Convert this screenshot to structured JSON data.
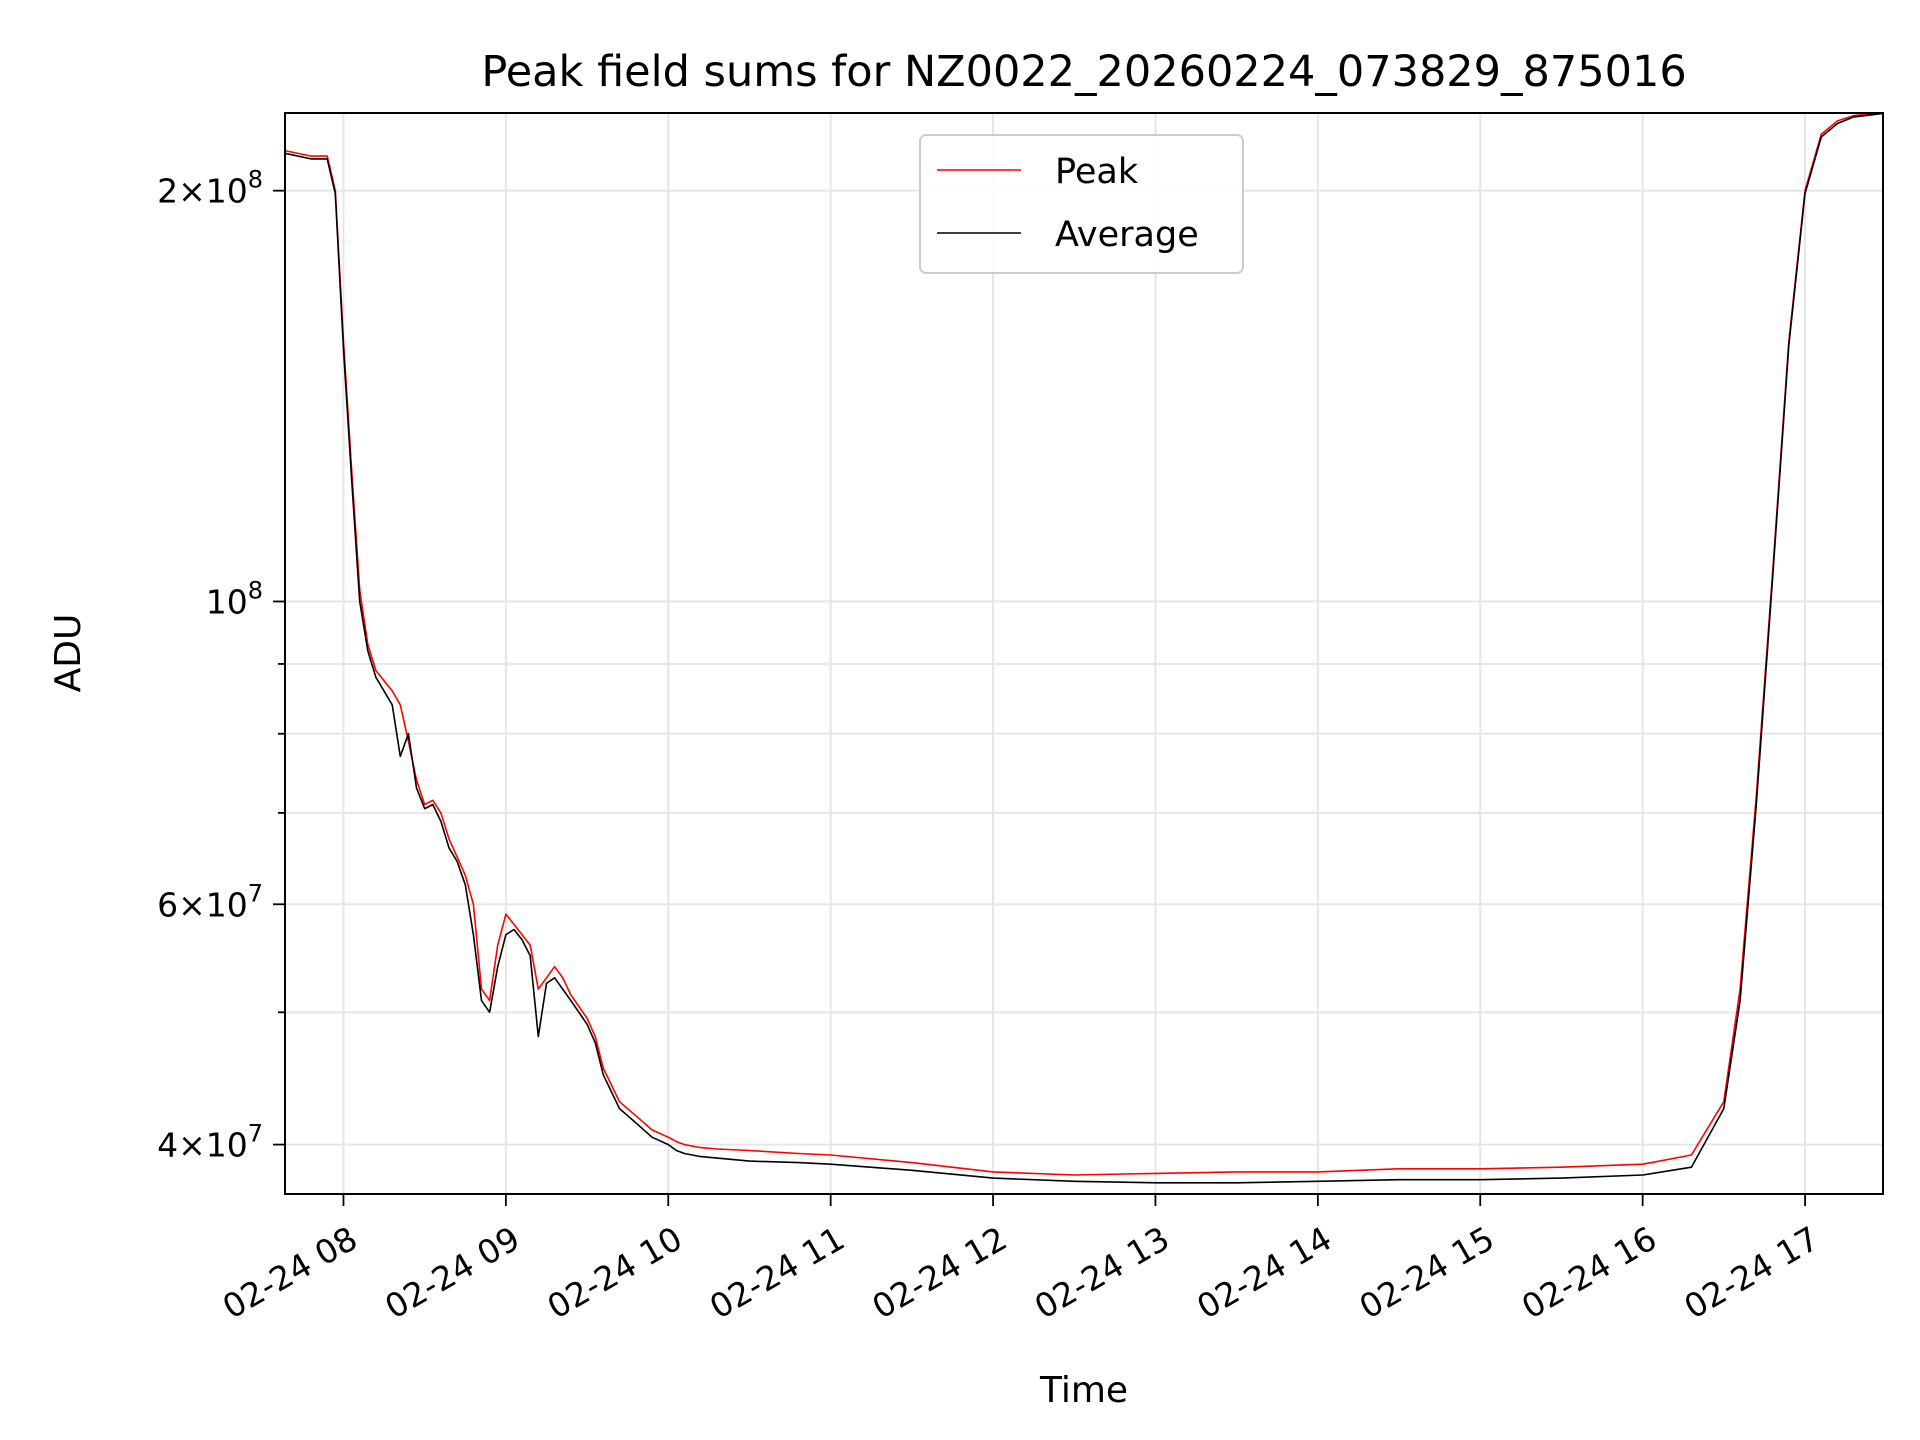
{
  "chart_data": {
    "type": "line",
    "title": "Peak field sums for NZ0022_20260224_073829_875016",
    "xlabel": "Time",
    "ylabel": "ADU",
    "xlim": [
      7.64,
      17.48
    ],
    "ylim": [
      36800000,
      228000000
    ],
    "y_scale": "log",
    "grid": true,
    "legend_position": "upper-center",
    "x_ticks": [
      {
        "value": 8,
        "label": "02-24 08"
      },
      {
        "value": 9,
        "label": "02-24 09"
      },
      {
        "value": 10,
        "label": "02-24 10"
      },
      {
        "value": 11,
        "label": "02-24 11"
      },
      {
        "value": 12,
        "label": "02-24 12"
      },
      {
        "value": 13,
        "label": "02-24 13"
      },
      {
        "value": 14,
        "label": "02-24 14"
      },
      {
        "value": 15,
        "label": "02-24 15"
      },
      {
        "value": 16,
        "label": "02-24 16"
      },
      {
        "value": 17,
        "label": "02-24 17"
      }
    ],
    "y_ticks": [
      {
        "value": 40000000,
        "mantissa": "4",
        "exponent": "7"
      },
      {
        "value": 60000000,
        "mantissa": "6",
        "exponent": "7"
      },
      {
        "value": 100000000,
        "mantissa": "",
        "exponent": "8"
      },
      {
        "value": 200000000,
        "mantissa": "2",
        "exponent": "8"
      }
    ],
    "y_minor_ticks": [
      50000000,
      70000000,
      80000000,
      90000000
    ],
    "series": [
      {
        "name": "Peak",
        "color": "#ff0000",
        "x": [
          7.64,
          7.8,
          7.9,
          7.95,
          8.0,
          8.05,
          8.1,
          8.15,
          8.2,
          8.3,
          8.35,
          8.4,
          8.45,
          8.5,
          8.55,
          8.6,
          8.65,
          8.7,
          8.75,
          8.8,
          8.85,
          8.9,
          8.95,
          9.0,
          9.05,
          9.1,
          9.15,
          9.2,
          9.25,
          9.3,
          9.35,
          9.4,
          9.45,
          9.5,
          9.55,
          9.6,
          9.7,
          9.8,
          9.9,
          10.0,
          10.05,
          10.1,
          10.2,
          10.3,
          10.5,
          10.8,
          11.0,
          11.5,
          12.0,
          12.5,
          13.0,
          13.5,
          14.0,
          14.5,
          15.0,
          15.5,
          16.0,
          16.3,
          16.5,
          16.6,
          16.7,
          16.8,
          16.9,
          17.0,
          17.1,
          17.2,
          17.3,
          17.4,
          17.48
        ],
        "values": [
          214000000,
          212000000,
          212000000,
          200000000,
          155000000,
          125000000,
          102000000,
          93000000,
          89000000,
          86000000,
          84000000,
          79000000,
          74000000,
          71000000,
          71500000,
          70000000,
          67000000,
          65000000,
          63000000,
          60000000,
          52000000,
          51000000,
          56000000,
          59000000,
          58000000,
          57000000,
          56000000,
          52000000,
          53000000,
          54000000,
          53000000,
          51500000,
          50500000,
          49500000,
          48000000,
          45500000,
          43000000,
          42000000,
          41000000,
          40500000,
          40200000,
          40000000,
          39800000,
          39700000,
          39600000,
          39400000,
          39300000,
          38800000,
          38200000,
          38000000,
          38100000,
          38200000,
          38200000,
          38400000,
          38400000,
          38500000,
          38700000,
          39300000,
          43000000,
          52000000,
          72000000,
          105000000,
          155000000,
          200000000,
          220000000,
          225000000,
          227000000,
          227500000,
          228000000
        ]
      },
      {
        "name": "Average",
        "color": "#000000",
        "x": [
          7.64,
          7.8,
          7.9,
          7.95,
          8.0,
          8.05,
          8.1,
          8.15,
          8.2,
          8.3,
          8.35,
          8.4,
          8.45,
          8.5,
          8.55,
          8.6,
          8.65,
          8.7,
          8.75,
          8.8,
          8.85,
          8.9,
          8.95,
          9.0,
          9.05,
          9.1,
          9.15,
          9.2,
          9.25,
          9.3,
          9.35,
          9.4,
          9.45,
          9.5,
          9.55,
          9.6,
          9.7,
          9.8,
          9.9,
          10.0,
          10.05,
          10.1,
          10.2,
          10.3,
          10.5,
          10.8,
          11.0,
          11.5,
          12.0,
          12.5,
          13.0,
          13.5,
          14.0,
          14.5,
          15.0,
          15.5,
          16.0,
          16.3,
          16.5,
          16.6,
          16.7,
          16.8,
          16.9,
          17.0,
          17.1,
          17.2,
          17.3,
          17.4,
          17.48
        ],
        "values": [
          213000000,
          211000000,
          211000000,
          199000000,
          153000000,
          123000000,
          100000000,
          92000000,
          88000000,
          84000000,
          77000000,
          80000000,
          73000000,
          70500000,
          71000000,
          69000000,
          66000000,
          64500000,
          62000000,
          57000000,
          51000000,
          50000000,
          54000000,
          57000000,
          57500000,
          56500000,
          55000000,
          48000000,
          52500000,
          53000000,
          52000000,
          51000000,
          50000000,
          49000000,
          47500000,
          45000000,
          42500000,
          41500000,
          40500000,
          40000000,
          39600000,
          39400000,
          39200000,
          39100000,
          38900000,
          38800000,
          38700000,
          38300000,
          37800000,
          37600000,
          37500000,
          37500000,
          37600000,
          37700000,
          37700000,
          37800000,
          38000000,
          38500000,
          42500000,
          51000000,
          71000000,
          104000000,
          154000000,
          199000000,
          219000000,
          224000000,
          226500000,
          227200000,
          227800000
        ]
      }
    ]
  }
}
